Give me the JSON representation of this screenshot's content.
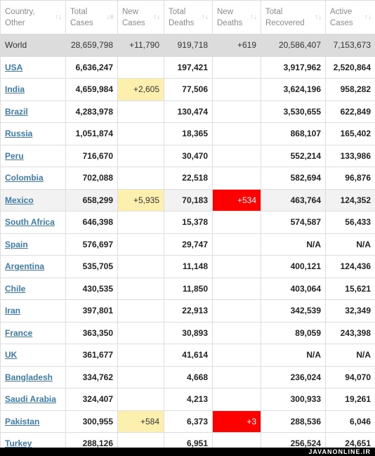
{
  "columns": [
    {
      "label": "Country, Other",
      "sort_icon": "sort-arrows-icon"
    },
    {
      "label": "Total Cases",
      "sort_icon": "sort-desc-icon"
    },
    {
      "label": "New Cases",
      "sort_icon": "sort-arrows-icon"
    },
    {
      "label": "Total Deaths",
      "sort_icon": "sort-arrows-icon"
    },
    {
      "label": "New Deaths",
      "sort_icon": "sort-arrows-icon"
    },
    {
      "label": "Total Recovered",
      "sort_icon": "sort-arrows-icon"
    },
    {
      "label": "Active Cases",
      "sort_icon": "sort-arrows-icon"
    }
  ],
  "colors": {
    "link": "#3d7ca8",
    "world_row_bg": "#dcdcdc",
    "new_cases_bg": "#fdefae",
    "new_deaths_bg": "#ff0000"
  },
  "rows": [
    {
      "country": "World",
      "total_cases": "28,659,798",
      "new_cases": "+11,790",
      "total_deaths": "919,718",
      "new_deaths": "+619",
      "total_recovered": "20,586,407",
      "active_cases": "7,153,673",
      "type": "world"
    },
    {
      "country": "USA",
      "total_cases": "6,636,247",
      "new_cases": "",
      "total_deaths": "197,421",
      "new_deaths": "",
      "total_recovered": "3,917,962",
      "active_cases": "2,520,864"
    },
    {
      "country": "India",
      "total_cases": "4,659,984",
      "new_cases": "+2,605",
      "total_deaths": "77,506",
      "new_deaths": "",
      "total_recovered": "3,624,196",
      "active_cases": "958,282"
    },
    {
      "country": "Brazil",
      "total_cases": "4,283,978",
      "new_cases": "",
      "total_deaths": "130,474",
      "new_deaths": "",
      "total_recovered": "3,530,655",
      "active_cases": "622,849"
    },
    {
      "country": "Russia",
      "total_cases": "1,051,874",
      "new_cases": "",
      "total_deaths": "18,365",
      "new_deaths": "",
      "total_recovered": "868,107",
      "active_cases": "165,402"
    },
    {
      "country": "Peru",
      "total_cases": "716,670",
      "new_cases": "",
      "total_deaths": "30,470",
      "new_deaths": "",
      "total_recovered": "552,214",
      "active_cases": "133,986"
    },
    {
      "country": "Colombia",
      "total_cases": "702,088",
      "new_cases": "",
      "total_deaths": "22,518",
      "new_deaths": "",
      "total_recovered": "582,694",
      "active_cases": "96,876"
    },
    {
      "country": "Mexico",
      "total_cases": "658,299",
      "new_cases": "+5,935",
      "total_deaths": "70,183",
      "new_deaths": "+534",
      "total_recovered": "463,764",
      "active_cases": "124,352",
      "type": "hl"
    },
    {
      "country": "South Africa",
      "total_cases": "646,398",
      "new_cases": "",
      "total_deaths": "15,378",
      "new_deaths": "",
      "total_recovered": "574,587",
      "active_cases": "56,433"
    },
    {
      "country": "Spain",
      "total_cases": "576,697",
      "new_cases": "",
      "total_deaths": "29,747",
      "new_deaths": "",
      "total_recovered": "N/A",
      "active_cases": "N/A"
    },
    {
      "country": "Argentina",
      "total_cases": "535,705",
      "new_cases": "",
      "total_deaths": "11,148",
      "new_deaths": "",
      "total_recovered": "400,121",
      "active_cases": "124,436"
    },
    {
      "country": "Chile",
      "total_cases": "430,535",
      "new_cases": "",
      "total_deaths": "11,850",
      "new_deaths": "",
      "total_recovered": "403,064",
      "active_cases": "15,621"
    },
    {
      "country": "Iran",
      "total_cases": "397,801",
      "new_cases": "",
      "total_deaths": "22,913",
      "new_deaths": "",
      "total_recovered": "342,539",
      "active_cases": "32,349"
    },
    {
      "country": "France",
      "total_cases": "363,350",
      "new_cases": "",
      "total_deaths": "30,893",
      "new_deaths": "",
      "total_recovered": "89,059",
      "active_cases": "243,398"
    },
    {
      "country": "UK",
      "total_cases": "361,677",
      "new_cases": "",
      "total_deaths": "41,614",
      "new_deaths": "",
      "total_recovered": "N/A",
      "active_cases": "N/A"
    },
    {
      "country": "Bangladesh",
      "total_cases": "334,762",
      "new_cases": "",
      "total_deaths": "4,668",
      "new_deaths": "",
      "total_recovered": "236,024",
      "active_cases": "94,070"
    },
    {
      "country": "Saudi Arabia",
      "total_cases": "324,407",
      "new_cases": "",
      "total_deaths": "4,213",
      "new_deaths": "",
      "total_recovered": "300,933",
      "active_cases": "19,261"
    },
    {
      "country": "Pakistan",
      "total_cases": "300,955",
      "new_cases": "+584",
      "total_deaths": "6,373",
      "new_deaths": "+3",
      "total_recovered": "288,536",
      "active_cases": "6,046"
    },
    {
      "country": "Turkey",
      "total_cases": "288,126",
      "new_cases": "",
      "total_deaths": "6,951",
      "new_deaths": "",
      "total_recovered": "256,524",
      "active_cases": "24,651"
    }
  ],
  "watermark": "JAVANONLINE.IR"
}
